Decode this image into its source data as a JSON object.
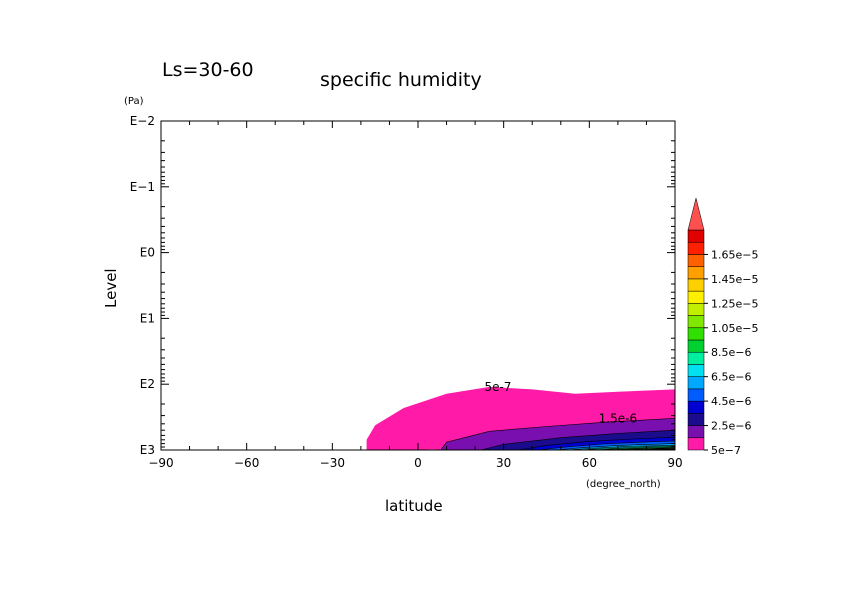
{
  "chart_data": {
    "type": "contour",
    "label_left": "Ls=30-60",
    "title": "specific humidity",
    "xlabel": "latitude",
    "x_unit": "(degree_north)",
    "ylabel": "Level",
    "y_unit": "(Pa)",
    "x_range": [
      -90,
      90
    ],
    "x_ticks": [
      -90,
      -60,
      -30,
      0,
      30,
      60,
      90
    ],
    "x_tick_labels": [
      "−90",
      "−60",
      "−30",
      "0",
      "30",
      "60",
      "90"
    ],
    "y_scale": "log",
    "y_range_pa": [
      1000,
      0.01
    ],
    "y_ticks_log10": [
      -2,
      -1,
      0,
      1,
      2,
      3
    ],
    "y_tick_labels": [
      "E−2",
      "E−1",
      "E0",
      "E1",
      "E2",
      "E3"
    ],
    "contour_labels": [
      {
        "text": "5e-7",
        "lat": 28,
        "level_pa": 110
      },
      {
        "text": "1.5e-6",
        "lat": 70,
        "level_pa": 330
      }
    ],
    "fills": [
      {
        "level": 5e-07,
        "color": "#ff1aa8",
        "boundary": [
          [
            -18,
            1000
          ],
          [
            -18,
            700
          ],
          [
            -15,
            420
          ],
          [
            -5,
            230
          ],
          [
            10,
            140
          ],
          [
            25,
            110
          ],
          [
            40,
            120
          ],
          [
            55,
            140
          ],
          [
            70,
            130
          ],
          [
            90,
            120
          ],
          [
            90,
            1000
          ],
          [
            15,
            1000
          ],
          [
            5,
            980
          ],
          [
            -8,
            1000
          ]
        ]
      },
      {
        "level": 1.5e-06,
        "color": "#7a0fb0",
        "boundary": [
          [
            8,
            1000
          ],
          [
            10,
            760
          ],
          [
            25,
            520
          ],
          [
            45,
            440
          ],
          [
            65,
            380
          ],
          [
            90,
            330
          ],
          [
            90,
            1000
          ]
        ]
      },
      {
        "level": 2.5e-06,
        "color": "#1a0c8c",
        "boundary": [
          [
            22,
            1000
          ],
          [
            30,
            820
          ],
          [
            50,
            650
          ],
          [
            70,
            560
          ],
          [
            90,
            500
          ],
          [
            90,
            1000
          ]
        ]
      },
      {
        "level": 3.5e-06,
        "color": "#0000d0",
        "boundary": [
          [
            35,
            1000
          ],
          [
            45,
            850
          ],
          [
            60,
            740
          ],
          [
            75,
            680
          ],
          [
            90,
            640
          ],
          [
            90,
            1000
          ]
        ]
      },
      {
        "level": 4.5e-06,
        "color": "#005cff",
        "boundary": [
          [
            42,
            1000
          ],
          [
            52,
            900
          ],
          [
            65,
            810
          ],
          [
            78,
            760
          ],
          [
            90,
            730
          ],
          [
            90,
            1000
          ]
        ]
      },
      {
        "level": 5.5e-06,
        "color": "#00a8ff",
        "boundary": [
          [
            48,
            1000
          ],
          [
            58,
            920
          ],
          [
            70,
            850
          ],
          [
            90,
            800
          ],
          [
            90,
            1000
          ]
        ]
      },
      {
        "level": 6.5e-06,
        "color": "#00e0f0",
        "boundary": [
          [
            52,
            1000
          ],
          [
            62,
            940
          ],
          [
            74,
            880
          ],
          [
            90,
            850
          ],
          [
            90,
            1000
          ]
        ]
      },
      {
        "level": 7.5e-06,
        "color": "#00f0a0",
        "boundary": [
          [
            56,
            1000
          ],
          [
            66,
            950
          ],
          [
            78,
            900
          ],
          [
            90,
            880
          ],
          [
            90,
            1000
          ]
        ]
      },
      {
        "level": 8.5e-06,
        "color": "#00d030",
        "boundary": [
          [
            60,
            1000
          ],
          [
            70,
            960
          ],
          [
            82,
            920
          ],
          [
            90,
            905
          ],
          [
            90,
            1000
          ]
        ]
      },
      {
        "level": 9.5e-06,
        "color": "#30e000",
        "boundary": [
          [
            64,
            1000
          ],
          [
            75,
            965
          ],
          [
            90,
            930
          ],
          [
            90,
            1000
          ]
        ]
      },
      {
        "level": 1.05e-05,
        "color": "#80e800",
        "boundary": [
          [
            68,
            1000
          ],
          [
            78,
            970
          ],
          [
            90,
            945
          ],
          [
            90,
            1000
          ]
        ]
      },
      {
        "level": 1.15e-05,
        "color": "#c0f000",
        "boundary": [
          [
            72,
            1000
          ],
          [
            82,
            975
          ],
          [
            90,
            960
          ],
          [
            90,
            1000
          ]
        ]
      },
      {
        "level": 1.25e-05,
        "color": "#fff000",
        "boundary": [
          [
            76,
            1000
          ],
          [
            85,
            980
          ],
          [
            90,
            970
          ],
          [
            90,
            1000
          ]
        ]
      },
      {
        "level": 1.35e-05,
        "color": "#ffd000",
        "boundary": [
          [
            80,
            1000
          ],
          [
            87,
            985
          ],
          [
            90,
            978
          ],
          [
            90,
            1000
          ]
        ]
      }
    ],
    "colorbar": {
      "colors": [
        "#ff1aa8",
        "#7a0fb0",
        "#1a0c8c",
        "#0000d0",
        "#005cff",
        "#00a8ff",
        "#00e0f0",
        "#00f0a0",
        "#00d030",
        "#30e000",
        "#80e800",
        "#c0f000",
        "#fff000",
        "#ffd000",
        "#ffa000",
        "#ff6000",
        "#ff2000",
        "#e00000"
      ],
      "extend_color": "#ff5050",
      "labels": [
        "5e−7",
        "2.5e−6",
        "4.5e−6",
        "6.5e−6",
        "8.5e−6",
        "1.05e−5",
        "1.25e−5",
        "1.45e−5",
        "1.65e−5"
      ]
    }
  }
}
